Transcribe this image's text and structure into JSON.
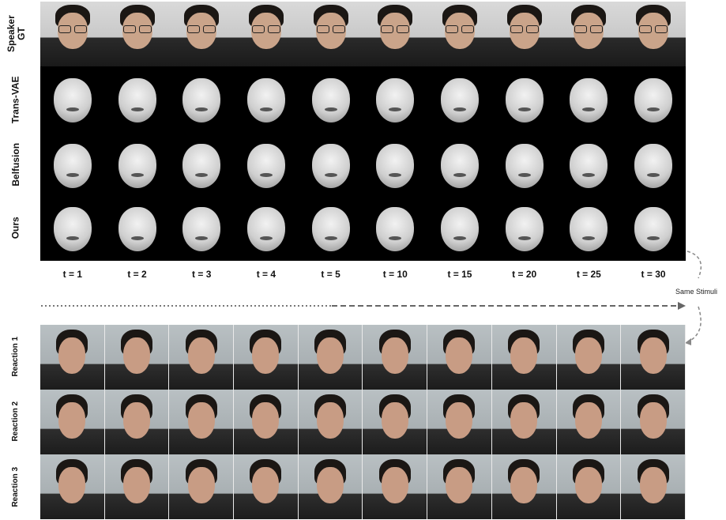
{
  "rows": {
    "speaker_gt": "Speaker\nGT",
    "trans_vae": "Trans-VAE",
    "belfusion": "Belfusion",
    "ours": "Ours",
    "reaction_1": "Reaction 1",
    "reaction_2": "Reaction 2",
    "reaction_3": "Reaction 3"
  },
  "time_labels": [
    "t = 1",
    "t = 2",
    "t = 3",
    "t = 4",
    "t = 5",
    "t = 10",
    "t = 15",
    "t = 20",
    "t = 25",
    "t = 30"
  ],
  "same_stimuli": "Same Stimuli"
}
